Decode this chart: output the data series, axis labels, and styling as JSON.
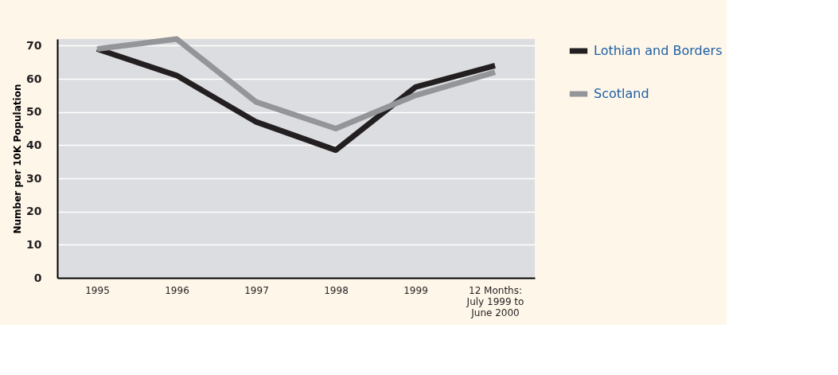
{
  "chart_data": {
    "type": "line",
    "ylabel": "Number per 10K Population",
    "categories": [
      "1995",
      "1996",
      "1997",
      "1998",
      "1999",
      "12 Months:\nJuly 1999 to\nJune 2000"
    ],
    "series": [
      {
        "name": "Lothian and Borders",
        "color": "#231f20",
        "values": [
          69,
          61,
          47,
          38.5,
          57.5,
          64
        ]
      },
      {
        "name": "Scotland",
        "color": "#939598",
        "values": [
          69,
          72,
          53,
          45,
          55,
          62
        ]
      }
    ],
    "ylim": [
      0,
      72
    ],
    "yticks": [
      0,
      10,
      20,
      30,
      40,
      50,
      60,
      70
    ],
    "grid": "y",
    "legend": "right",
    "marker": "none",
    "line_style": "solid"
  }
}
